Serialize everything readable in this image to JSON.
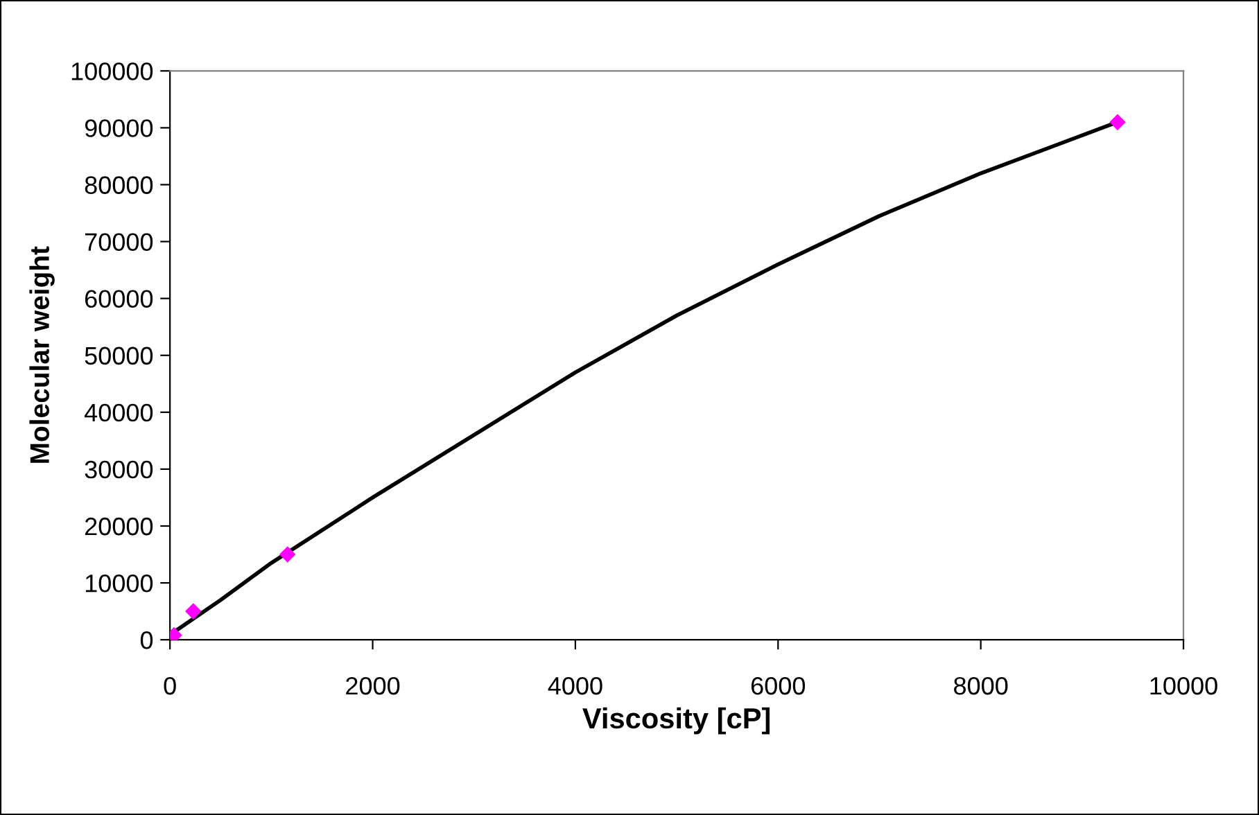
{
  "chart_data": {
    "type": "scatter",
    "xlabel": "Viscosity [cP]",
    "ylabel": "Molecular weight",
    "xlim": [
      0,
      10000
    ],
    "xticks": [
      0,
      2000,
      4000,
      6000,
      8000,
      10000
    ],
    "ylim": [
      0,
      100000
    ],
    "yticks": [
      0,
      10000,
      20000,
      30000,
      40000,
      50000,
      60000,
      70000,
      80000,
      90000,
      100000
    ],
    "grid": false,
    "series": [
      {
        "marker": "diamond",
        "color": "#ff00ff",
        "x": [
          40,
          230,
          1160,
          9350
        ],
        "values": [
          800,
          5000,
          15000,
          91000
        ]
      },
      {
        "type": "line",
        "marker": "none",
        "line_style": "solid",
        "color": "#000000",
        "x": [
          0,
          50,
          500,
          1000,
          2000,
          3000,
          4000,
          5000,
          6000,
          7000,
          8000,
          9350
        ],
        "values": [
          1000,
          1500,
          7000,
          13500,
          25000,
          36000,
          47000,
          57000,
          66000,
          74500,
          82000,
          91000
        ]
      }
    ]
  }
}
